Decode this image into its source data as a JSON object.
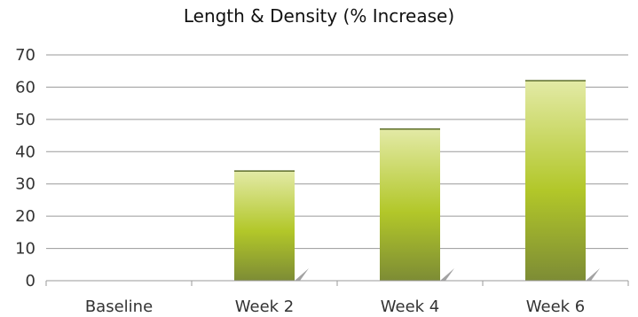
{
  "chart_data": {
    "type": "bar",
    "title": "Length & Density (% Increase)",
    "categories": [
      "Baseline",
      "Week 2",
      "Week 4",
      "Week 6"
    ],
    "values": [
      0,
      34,
      47,
      62
    ],
    "xlabel": "",
    "ylabel": "",
    "ylim": [
      0,
      70
    ],
    "yticks": [
      0,
      10,
      20,
      30,
      40,
      50,
      60,
      70
    ],
    "grid": true,
    "legend": "none",
    "colors": {
      "bar_top": "#e3eaa6",
      "bar_mid": "#b2c729",
      "bar_bottom": "#7d8c35",
      "bar_cap": "#5c6d2a",
      "gridline": "#9a9a9a",
      "axis": "#9a9a9a",
      "text": "#333333"
    }
  }
}
